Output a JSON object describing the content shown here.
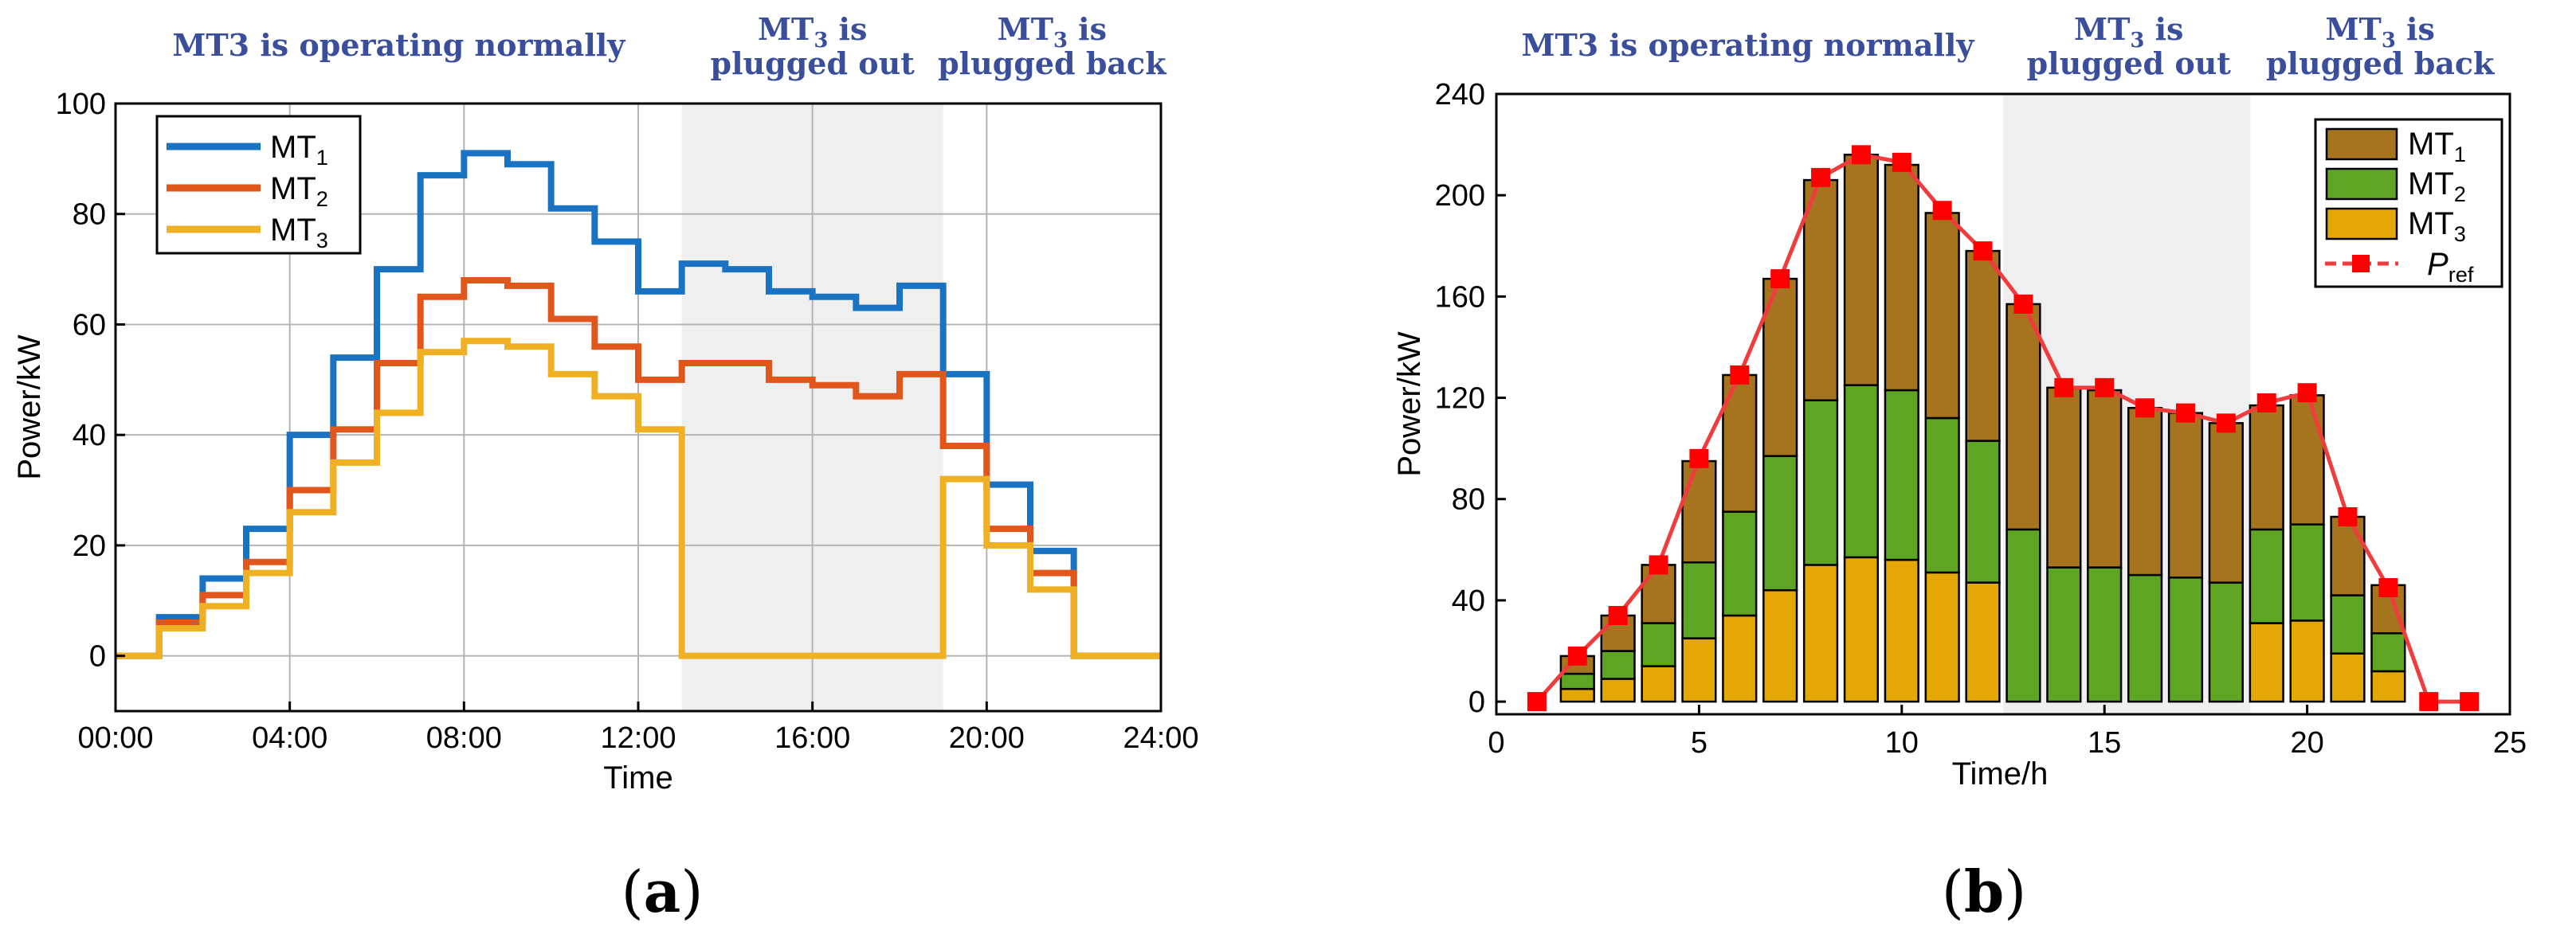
{
  "chart_data": [
    {
      "type": "line",
      "step": true,
      "panel_label": {
        "open": "(",
        "letter": "a",
        "close": ")"
      },
      "xlabel": "Time",
      "ylabel": "Power/kW",
      "xlim": [
        0,
        24
      ],
      "ylim": [
        -10,
        100
      ],
      "xticks": [
        0,
        4,
        8,
        12,
        16,
        20,
        24
      ],
      "xtick_labels": [
        "00:00",
        "04:00",
        "08:00",
        "12:00",
        "16:00",
        "20:00",
        "24:00"
      ],
      "yticks": [
        0,
        20,
        40,
        60,
        80,
        100
      ],
      "ytick_labels": [
        "0",
        "20",
        "40",
        "60",
        "80",
        "100"
      ],
      "grid": true,
      "legend_position": "top-left",
      "shaded_region": [
        13,
        19
      ],
      "phases": [
        {
          "lines": [
            "MT3 is operating normally"
          ],
          "x_center": 6.5
        },
        {
          "lines": [
            [
              "MT",
              "3",
              " is"
            ],
            "plugged out"
          ],
          "x_center": 16
        },
        {
          "lines": [
            [
              "MT",
              "3",
              " is"
            ],
            "plugged back"
          ],
          "x_center": 21.5
        }
      ],
      "x_steps": [
        0,
        1,
        2,
        3,
        4,
        5,
        6,
        7,
        8,
        9,
        10,
        11,
        12,
        13,
        14,
        15,
        16,
        17,
        18,
        19,
        20,
        21,
        22,
        23,
        24
      ],
      "series": [
        {
          "name": "MT",
          "sub": "1",
          "color": "#1a73c2",
          "values": [
            0,
            7,
            14,
            23,
            40,
            54,
            70,
            87,
            91,
            89,
            81,
            75,
            66,
            71,
            70,
            66,
            65,
            63,
            67,
            51,
            31,
            19,
            0,
            0
          ]
        },
        {
          "name": "MT",
          "sub": "2",
          "color": "#e0561b",
          "values": [
            0,
            6,
            11,
            17,
            30,
            41,
            53,
            65,
            68,
            67,
            61,
            56,
            50,
            53,
            53,
            50,
            49,
            47,
            51,
            38,
            23,
            15,
            0,
            0
          ]
        },
        {
          "name": "MT",
          "sub": "3",
          "color": "#efb123",
          "values": [
            0,
            5,
            9,
            15,
            26,
            35,
            44,
            55,
            57,
            56,
            51,
            47,
            41,
            0,
            0,
            0,
            0,
            0,
            0,
            32,
            20,
            12,
            0,
            0
          ]
        }
      ]
    },
    {
      "type": "bar",
      "stacked": true,
      "panel_label": {
        "open": "(",
        "letter": "b",
        "close": ")"
      },
      "xlabel": "Time/h",
      "ylabel": "Power/kW",
      "xlim": [
        0,
        25
      ],
      "ylim": [
        -5,
        240
      ],
      "xticks": [
        0,
        5,
        10,
        15,
        20,
        25
      ],
      "xtick_labels": [
        "0",
        "5",
        "10",
        "15",
        "20",
        "25"
      ],
      "yticks": [
        0,
        40,
        80,
        120,
        160,
        200,
        240
      ],
      "ytick_labels": [
        "0",
        "40",
        "80",
        "120",
        "160",
        "200",
        "240"
      ],
      "grid": false,
      "legend_position": "top-right",
      "shaded_region": [
        12.5,
        18.6
      ],
      "phases": [
        {
          "lines": [
            "MT3 is operating normally"
          ],
          "x_center": 6.2
        },
        {
          "lines": [
            [
              "MT",
              "3",
              " is"
            ],
            "plugged out"
          ],
          "x_center": 15.6
        },
        {
          "lines": [
            [
              "MT",
              "3",
              " is"
            ],
            "plugged back"
          ],
          "x_center": 21.8
        }
      ],
      "categories": [
        1,
        2,
        3,
        4,
        5,
        6,
        7,
        8,
        9,
        10,
        11,
        12,
        13,
        14,
        15,
        16,
        17,
        18,
        19,
        20,
        21,
        22,
        23,
        24
      ],
      "series": [
        {
          "name": "MT",
          "sub": "1",
          "color": "#a6731f",
          "values": [
            0,
            7,
            14,
            23,
            40,
            54,
            70,
            87,
            91,
            89,
            81,
            75,
            89,
            71,
            70,
            66,
            65,
            63,
            49,
            51,
            31,
            19,
            0,
            0
          ]
        },
        {
          "name": "MT",
          "sub": "2",
          "color": "#5ea523",
          "values": [
            0,
            6,
            11,
            17,
            30,
            41,
            53,
            65,
            68,
            67,
            61,
            56,
            68,
            53,
            53,
            50,
            49,
            47,
            37,
            38,
            23,
            15,
            0,
            0
          ]
        },
        {
          "name": "MT",
          "sub": "3",
          "color": "#e5a704",
          "values": [
            0,
            5,
            9,
            14,
            25,
            34,
            44,
            54,
            57,
            56,
            51,
            47,
            0,
            0,
            0,
            0,
            0,
            0,
            31,
            32,
            19,
            12,
            0,
            0
          ]
        }
      ],
      "reference_line": {
        "name": "P",
        "sub": "ref",
        "color": "#ff0000",
        "line_color": "#f03c3c",
        "values": [
          0,
          18,
          34,
          54,
          96,
          129,
          167,
          207,
          216,
          213,
          194,
          178,
          157,
          124,
          124,
          116,
          114,
          110,
          118,
          122,
          73,
          45,
          0,
          0
        ]
      }
    }
  ]
}
